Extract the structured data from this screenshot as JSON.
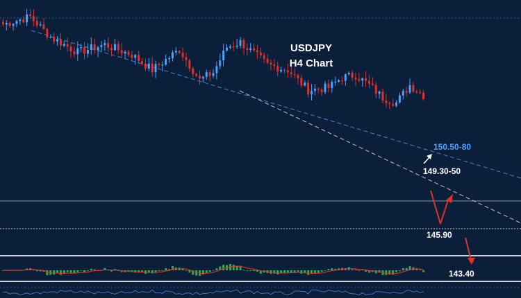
{
  "chart_data": {
    "type": "candlestick",
    "title": "USDJPY",
    "subtitle": "H4 Chart",
    "colors": {
      "background": "#0c1f3a",
      "bull": "#4da3ff",
      "bear": "#e0322b",
      "upper_trendline": "#3b86d6",
      "lower_trendline": "#bfc7d3",
      "level_line": "#8fa3bd",
      "arrow_red": "#e0322b",
      "arrow_white": "#ffffff",
      "label_blue": "#4da3ff",
      "label_white": "#ffffff",
      "histogram": "#2fae4e",
      "signal": "#e0322b",
      "subpanel_line": "#3f74c4"
    },
    "price_axis": {
      "top": 152.6,
      "bottom": 142.9
    },
    "candles": {
      "count": 125,
      "anchors": [
        [
          0,
          151.8
        ],
        [
          8,
          152.1
        ],
        [
          14,
          151.3
        ],
        [
          22,
          150.7
        ],
        [
          30,
          151.0
        ],
        [
          38,
          150.6
        ],
        [
          44,
          150.0
        ],
        [
          52,
          150.8
        ],
        [
          58,
          149.6
        ],
        [
          62,
          149.9
        ],
        [
          66,
          150.9
        ],
        [
          70,
          151.1
        ],
        [
          78,
          150.2
        ],
        [
          84,
          150.0
        ],
        [
          90,
          149.2
        ],
        [
          96,
          149.3
        ],
        [
          100,
          149.7
        ],
        [
          104,
          149.8
        ],
        [
          108,
          149.4
        ],
        [
          112,
          148.9
        ],
        [
          116,
          148.7
        ],
        [
          120,
          149.4
        ],
        [
          124,
          149.0
        ]
      ]
    },
    "annotations": {
      "upper_target": "150.50-80",
      "resistance": "149.30-50",
      "support_1": "145.90",
      "support_2": "143.40"
    },
    "levels": [
      {
        "name": "support_1",
        "price": 145.9
      },
      {
        "name": "support_2",
        "price": 143.4
      }
    ],
    "indicator": {
      "type": "oscillator histogram with signal line"
    }
  }
}
